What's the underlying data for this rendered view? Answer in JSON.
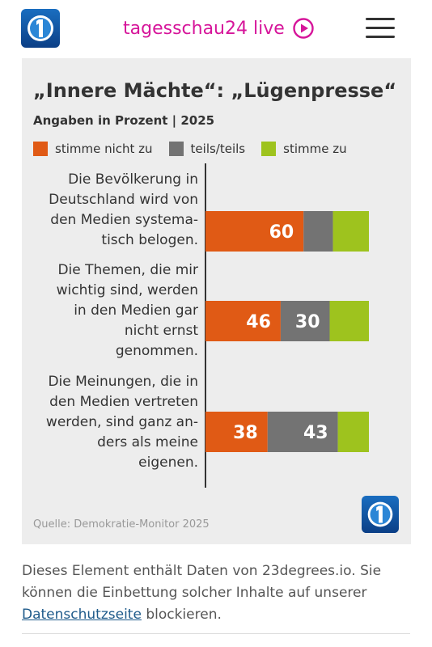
{
  "header": {
    "live_label": "tagesschau24 live",
    "logo_icon": "tagesschau-logo-icon",
    "play_icon": "play-circle-icon",
    "menu_icon": "hamburger-menu-icon",
    "accent_color": "#d6159a"
  },
  "chart_data": {
    "type": "bar",
    "orientation": "horizontal",
    "stacked": true,
    "title": "„Innere Mächte“: „Lügenpresse“",
    "subtitle": "Angaben in Prozent | 2025",
    "legend_placement": "top",
    "xlim": [
      0,
      100
    ],
    "categories": [
      [
        "Die Bevölkerung in",
        "Deutschland wird von",
        "den Medien systema-",
        "tisch belogen."
      ],
      [
        "Die Themen, die mir",
        "wichtig sind, werden",
        "in den Medien gar",
        "nicht ernst",
        "genommen."
      ],
      [
        "Die Meinungen, die in",
        "den Medien vertreten",
        "werden, sind ganz an-",
        "ders als meine",
        "eigenen."
      ]
    ],
    "series": [
      {
        "name": "stimme nicht zu",
        "color": "#e05a15",
        "values": [
          60,
          46,
          38
        ],
        "labels": [
          "60",
          "46",
          "38"
        ]
      },
      {
        "name": "teils/teils",
        "color": "#737373",
        "values": [
          18,
          30,
          43
        ],
        "labels": [
          "",
          "30",
          "43"
        ]
      },
      {
        "name": "stimme zu",
        "color": "#9ec31e",
        "values": [
          22,
          24,
          19
        ],
        "labels": [
          "",
          "",
          ""
        ]
      }
    ],
    "source": "Quelle: Demokratie-Monitor 2025"
  },
  "notice": {
    "text_before": "Dieses Element enthält Daten von 23degrees.io. Sie können die Einbettung solcher Inhalte auf unserer ",
    "link_label": "Datenschutzseite",
    "text_after": " blockieren."
  }
}
